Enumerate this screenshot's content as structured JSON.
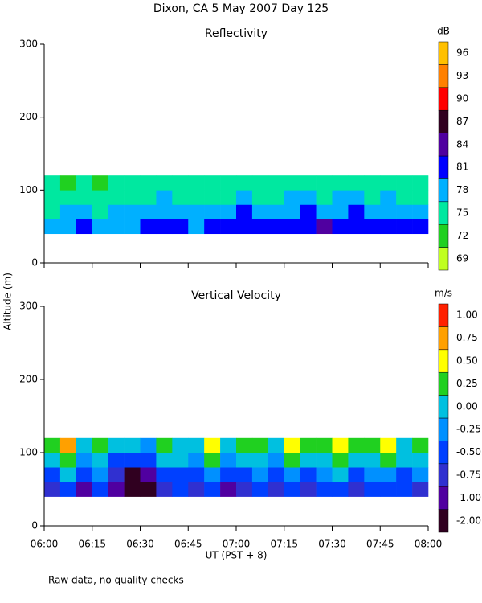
{
  "title": "Dixon, CA  5 May 2007  Day 125",
  "ylabel": "Altitude (m)",
  "footnote": "Raw data, no quality checks",
  "chart_data": [
    {
      "type": "heatmap",
      "title": "Reflectivity",
      "colorbar_label": "dB",
      "ylim": [
        0,
        300
      ],
      "yticks": [
        0,
        100,
        200,
        300
      ],
      "xbins": [
        360,
        365,
        370,
        375,
        380,
        385,
        390,
        395,
        400,
        405,
        410,
        415,
        420,
        425,
        430,
        435,
        440,
        445,
        450,
        455,
        460,
        465,
        470,
        475,
        480
      ],
      "ybins": [
        40,
        60,
        80,
        100,
        120
      ],
      "z": [
        [
          80,
          79,
          81,
          80,
          79,
          80,
          81,
          82,
          81,
          80,
          82,
          81,
          82,
          83,
          82,
          81,
          82,
          84,
          82,
          83,
          82,
          81,
          82,
          81
        ],
        [
          77,
          78,
          78,
          77,
          78,
          79,
          79,
          80,
          78,
          79,
          80,
          79,
          81,
          80,
          79,
          80,
          81,
          80,
          80,
          81,
          79,
          80,
          80,
          79
        ],
        [
          76,
          76,
          75,
          76,
          77,
          76,
          77,
          78,
          76,
          77,
          77,
          76,
          78,
          77,
          77,
          78,
          78,
          77,
          78,
          78,
          77,
          78,
          77,
          77
        ],
        [
          75,
          74,
          75,
          73,
          76,
          75,
          75,
          76,
          75,
          76,
          76,
          75,
          76,
          76,
          75,
          76,
          77,
          76,
          77,
          76,
          76,
          77,
          76,
          76
        ]
      ],
      "colorbar_ticks": [
        69,
        72,
        75,
        78,
        81,
        84,
        87,
        90,
        93,
        96
      ],
      "colors": [
        "#c0ff20",
        "#20d020",
        "#00e8a0",
        "#00b0ff",
        "#0000ff",
        "#5000a0",
        "#300020",
        "#ff0000",
        "#ff8000",
        "#ffc000"
      ]
    },
    {
      "type": "heatmap",
      "title": "Vertical Velocity",
      "colorbar_label": "m/s",
      "xlabel": "UT  (PST + 8)",
      "xlim": [
        360,
        480
      ],
      "xticks": [
        {
          "value": 360,
          "label": "06:00"
        },
        {
          "value": 375,
          "label": "06:15"
        },
        {
          "value": 390,
          "label": "06:30"
        },
        {
          "value": 405,
          "label": "06:45"
        },
        {
          "value": 420,
          "label": "07:00"
        },
        {
          "value": 435,
          "label": "07:15"
        },
        {
          "value": 450,
          "label": "07:30"
        },
        {
          "value": 465,
          "label": "07:45"
        },
        {
          "value": 480,
          "label": "08:00"
        }
      ],
      "ylim": [
        0,
        300
      ],
      "yticks": [
        0,
        100,
        200,
        300
      ],
      "xbins": [
        360,
        365,
        370,
        375,
        380,
        385,
        390,
        395,
        400,
        405,
        410,
        415,
        420,
        425,
        430,
        435,
        440,
        445,
        450,
        455,
        460,
        465,
        470,
        475,
        480
      ],
      "ybins": [
        40,
        60,
        80,
        100,
        120
      ],
      "z": [
        [
          -0.6,
          -0.3,
          -0.8,
          -0.5,
          -0.9,
          -1.2,
          -1.5,
          -0.7,
          -0.5,
          -0.6,
          -0.4,
          -0.8,
          -0.6,
          -0.5,
          -0.7,
          -0.4,
          -0.6,
          -0.5,
          -0.3,
          -0.6,
          -0.5,
          -0.4,
          -0.5,
          -0.6
        ],
        [
          -0.3,
          0.1,
          -0.5,
          -0.2,
          -0.6,
          -1.1,
          -1.0,
          -0.4,
          -0.3,
          -0.5,
          -0.2,
          -0.4,
          -0.3,
          -0.2,
          -0.4,
          -0.1,
          -0.3,
          -0.2,
          0.1,
          -0.3,
          -0.2,
          -0.1,
          -0.3,
          -0.2
        ],
        [
          0.1,
          0.4,
          -0.2,
          0.2,
          -0.3,
          -0.4,
          -0.5,
          0.1,
          0.0,
          -0.2,
          0.3,
          -0.1,
          0.0,
          0.2,
          -0.1,
          0.3,
          0.0,
          0.2,
          0.4,
          0.1,
          0.2,
          0.3,
          0.0,
          0.1
        ],
        [
          0.3,
          0.8,
          0.2,
          0.4,
          0.0,
          0.1,
          -0.2,
          0.3,
          0.2,
          0.1,
          0.5,
          0.2,
          0.3,
          0.4,
          0.1,
          0.5,
          0.3,
          0.4,
          0.6,
          0.3,
          0.4,
          0.5,
          0.2,
          0.3
        ]
      ],
      "colorbar_ticks": [
        {
          "value": -2,
          "label": "-2.00"
        },
        {
          "value": -1,
          "label": "-1.00"
        },
        {
          "value": -0.75,
          "label": "-0.75"
        },
        {
          "value": -0.5,
          "label": "-0.50"
        },
        {
          "value": -0.25,
          "label": "-0.25"
        },
        {
          "value": 0,
          "label": "0.00"
        },
        {
          "value": 0.25,
          "label": "0.25"
        },
        {
          "value": 0.5,
          "label": "0.50"
        },
        {
          "value": 0.75,
          "label": "0.75"
        },
        {
          "value": 1,
          "label": "1.00"
        }
      ],
      "colors": [
        "#300020",
        "#5000a0",
        "#3030d0",
        "#0040ff",
        "#0090ff",
        "#00c0e0",
        "#20d020",
        "#ffff00",
        "#ffa000",
        "#ff2000"
      ]
    }
  ]
}
